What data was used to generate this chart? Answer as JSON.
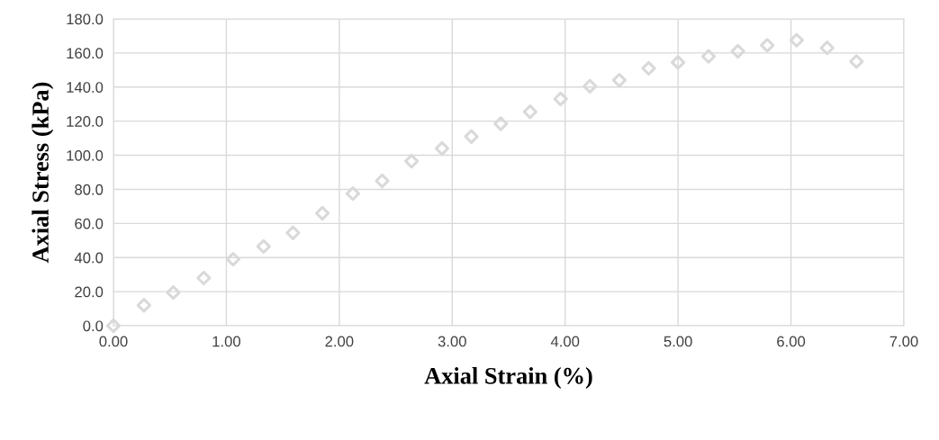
{
  "chart_data": {
    "type": "scatter",
    "xlabel": "Axial Strain (%)",
    "ylabel": "Axial Stress (kPa)",
    "x": [
      0,
      0.27,
      0.53,
      0.8,
      1.06,
      1.33,
      1.59,
      1.85,
      2.12,
      2.38,
      2.64,
      2.91,
      3.17,
      3.43,
      3.69,
      3.96,
      4.22,
      4.48,
      4.74,
      5.0,
      5.27,
      5.53,
      5.79,
      6.05,
      6.32,
      6.58
    ],
    "series": [
      {
        "color": "#d9d9d9",
        "values": [
          0,
          12,
          19.5,
          28,
          39,
          46.5,
          54.5,
          66,
          77.5,
          85,
          96.5,
          104,
          111,
          118.5,
          125.5,
          133,
          140.5,
          144,
          151,
          154.5,
          158,
          161,
          164.5,
          167.5,
          163,
          155
        ]
      }
    ],
    "marker": "diamond",
    "grid": true,
    "xlim": [
      0,
      7
    ],
    "ylim": [
      0,
      180
    ],
    "xticks": [
      {
        "value": 0,
        "label": "0.00"
      },
      {
        "value": 1,
        "label": "1.00"
      },
      {
        "value": 2,
        "label": "2.00"
      },
      {
        "value": 3,
        "label": "3.00"
      },
      {
        "value": 4,
        "label": "4.00"
      },
      {
        "value": 5,
        "label": "5.00"
      },
      {
        "value": 6,
        "label": "6.00"
      },
      {
        "value": 7,
        "label": "7.00"
      }
    ],
    "yticks": [
      {
        "value": 0,
        "label": "0.0"
      },
      {
        "value": 20,
        "label": "20.0"
      },
      {
        "value": 40,
        "label": "40.0"
      },
      {
        "value": 60,
        "label": "60.0"
      },
      {
        "value": 80,
        "label": "80.0"
      },
      {
        "value": 100,
        "label": "100.0"
      },
      {
        "value": 120,
        "label": "120.0"
      },
      {
        "value": 140,
        "label": "140.0"
      },
      {
        "value": 160,
        "label": "160.0"
      },
      {
        "value": 180,
        "label": "180.0"
      }
    ]
  }
}
